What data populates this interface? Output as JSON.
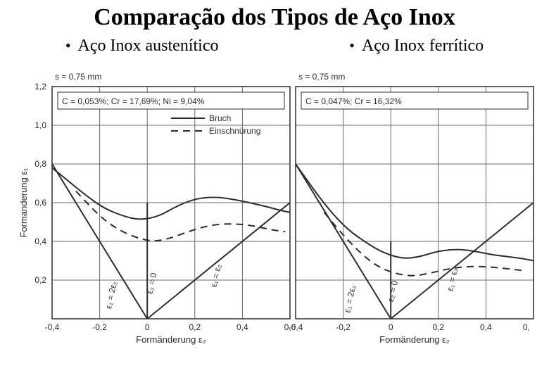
{
  "title": "Comparação dos Tipos de Aço Inox",
  "subtitles": {
    "left": {
      "bullet": "•",
      "text": "Aço Inox austenítico"
    },
    "right": {
      "bullet": "•",
      "text": "Aço Inox ferrítico"
    }
  },
  "common": {
    "ylabel": "Formanderung ε₁",
    "xlabel": "Formänderung ε₂",
    "s_text": "s = 0,75 mm",
    "legend": {
      "solid": "Bruch",
      "dash": "Einschnürung"
    },
    "tick_font": 12,
    "label_font": 13,
    "colors": {
      "bg": "#ffffff",
      "stroke": "#2d2d2d",
      "grid": "#6a6a6a",
      "text": "#2d2d2d"
    },
    "line_width": 2,
    "dash_pattern": "10 7"
  },
  "left_chart": {
    "composition": "C = 0,053%; Cr = 17,69%; Ni = 9,04%",
    "xlim": [
      -0.4,
      0.6
    ],
    "ylim": [
      0,
      1.2
    ],
    "xticks": [
      -0.4,
      -0.2,
      0,
      0.2,
      0.4,
      0.6
    ],
    "xtick_labels": [
      "-0,4",
      "-0,2",
      "0",
      "0,2",
      "0,4",
      "0,6"
    ],
    "yticks": [
      0,
      0.2,
      0.4,
      0.6,
      0.8,
      1.0,
      1.2
    ],
    "ytick_labels": [
      "0",
      "0,2",
      "0,4",
      "0,6",
      "0,8",
      "1,0",
      "1,2"
    ],
    "solid_curve": [
      [
        -0.4,
        0.78
      ],
      [
        -0.32,
        0.7
      ],
      [
        -0.25,
        0.63
      ],
      [
        -0.18,
        0.57
      ],
      [
        -0.1,
        0.53
      ],
      [
        -0.03,
        0.51
      ],
      [
        0.05,
        0.53
      ],
      [
        0.12,
        0.58
      ],
      [
        0.2,
        0.62
      ],
      [
        0.28,
        0.63
      ],
      [
        0.35,
        0.62
      ],
      [
        0.43,
        0.6
      ],
      [
        0.5,
        0.58
      ],
      [
        0.56,
        0.56
      ],
      [
        0.6,
        0.55
      ]
    ],
    "dash_curve": [
      [
        -0.3,
        0.66
      ],
      [
        -0.24,
        0.58
      ],
      [
        -0.18,
        0.51
      ],
      [
        -0.12,
        0.46
      ],
      [
        -0.05,
        0.42
      ],
      [
        0.02,
        0.4
      ],
      [
        0.08,
        0.41
      ],
      [
        0.15,
        0.44
      ],
      [
        0.22,
        0.47
      ],
      [
        0.3,
        0.49
      ],
      [
        0.38,
        0.49
      ],
      [
        0.45,
        0.48
      ],
      [
        0.52,
        0.46
      ],
      [
        0.58,
        0.45
      ]
    ],
    "rays": {
      "left": {
        "pts": [
          [
            0,
            0
          ],
          [
            -0.4,
            0.8
          ]
        ],
        "anno": "ε₁ = 2ε₂",
        "anno_at": [
          -0.14,
          0.12
        ]
      },
      "mid": {
        "pts": [
          [
            0,
            0
          ],
          [
            0.0,
            0.6
          ]
        ],
        "anno": "ε₂ = 0",
        "anno_at": [
          0.03,
          0.18
        ]
      },
      "right": {
        "pts": [
          [
            0,
            0
          ],
          [
            0.6,
            0.6
          ]
        ],
        "anno": "ε₁ = ε₂",
        "anno_at": [
          0.3,
          0.22
        ]
      }
    }
  },
  "right_chart": {
    "composition": "C = 0,047%; Cr = 16,32%",
    "xlim": [
      -0.4,
      0.6
    ],
    "ylim": [
      0,
      1.2
    ],
    "xticks": [
      -0.4,
      -0.2,
      0,
      0.2,
      0.4
    ],
    "xtick_labels": [
      "-0,4",
      "-0,2",
      "0",
      "0,2",
      "0,4"
    ],
    "extra_xtick": {
      "pos": 0.57,
      "label": "0,"
    },
    "yticks": [
      0,
      0.2,
      0.4,
      0.6,
      0.8,
      1.0,
      1.2
    ],
    "solid_curve": [
      [
        -0.4,
        0.8
      ],
      [
        -0.32,
        0.66
      ],
      [
        -0.25,
        0.55
      ],
      [
        -0.18,
        0.46
      ],
      [
        -0.1,
        0.39
      ],
      [
        -0.03,
        0.34
      ],
      [
        0.05,
        0.31
      ],
      [
        0.12,
        0.32
      ],
      [
        0.2,
        0.35
      ],
      [
        0.28,
        0.36
      ],
      [
        0.35,
        0.35
      ],
      [
        0.43,
        0.33
      ],
      [
        0.5,
        0.32
      ],
      [
        0.56,
        0.31
      ],
      [
        0.6,
        0.3
      ]
    ],
    "dash_curve": [
      [
        -0.28,
        0.55
      ],
      [
        -0.22,
        0.46
      ],
      [
        -0.16,
        0.38
      ],
      [
        -0.1,
        0.31
      ],
      [
        -0.04,
        0.26
      ],
      [
        0.03,
        0.23
      ],
      [
        0.1,
        0.22
      ],
      [
        0.18,
        0.24
      ],
      [
        0.25,
        0.26
      ],
      [
        0.32,
        0.27
      ],
      [
        0.4,
        0.27
      ],
      [
        0.48,
        0.26
      ],
      [
        0.55,
        0.25
      ]
    ],
    "rays": {
      "left": {
        "pts": [
          [
            0,
            0
          ],
          [
            -0.4,
            0.8
          ]
        ],
        "anno": "ε₁ = 2ε₂",
        "anno_at": [
          -0.16,
          0.1
        ]
      },
      "mid": {
        "pts": [
          [
            0,
            0
          ],
          [
            0.0,
            0.4
          ]
        ],
        "anno": "ε₂ = 0",
        "anno_at": [
          0.02,
          0.14
        ]
      },
      "right": {
        "pts": [
          [
            0,
            0
          ],
          [
            0.6,
            0.6
          ]
        ],
        "anno": "ε₁ = ε₂",
        "anno_at": [
          0.27,
          0.2
        ]
      }
    }
  }
}
